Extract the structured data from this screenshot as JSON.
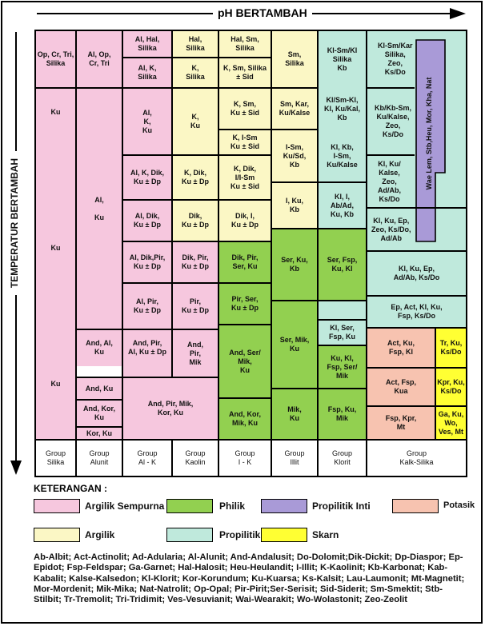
{
  "axes": {
    "ph_title": "pH BERTAMBAH",
    "temp_title": "TEMPERATUR BERTAMBAH"
  },
  "cells": {
    "s1": "Op, Cr, Tri,\nSilika",
    "s2": "Ku",
    "s3": "Ku",
    "s4": "Ku",
    "a1": "Al, Op,\nCr, Tri",
    "a2": "Al,\n\nKu",
    "a3": "And, Al,\nKu",
    "a4": "And, Ku",
    "a5": "And, Kor,\nKu",
    "a6": "Kor, Ku",
    "ak1": "Al, Hal,\nSilika",
    "ak2": "Al, K,\nSilika",
    "ak3": "Al,\nK,\nKu",
    "ak4": "Al, K, Dik,\nKu ± Dp",
    "ak5": "Al, Dik,\nKu ± Dp",
    "ak6": "Al, Dik,Pir,\nKu ± Dp",
    "ak7": "Al, Pir,\nKu ± Dp",
    "ak8": "And, Pir,\nAl, Ku ± Dp",
    "ak9": "And, Pir, Mik,\nKor, Ku",
    "ka1": "Hal,\nSilika",
    "ka2": "K,\nSilika",
    "ka3": "K,\nKu",
    "ka4": "K, Dik,\nKu ± Dp",
    "ka5": "Dik,\nKu ± Dp",
    "ka6": "Dik, Pir,\nKu ± Dp",
    "ka7": "Pir,\nKu ± Dp",
    "ka8": "And,\nPir,\nMik",
    "ik1": "Hal, Sm,\nSilika",
    "ik2": "K, Sm, Silika\n± Sid",
    "ik3": "K, Sm,\nKu ± Sid",
    "ik4": "K, I-Sm\nKu ± Sid",
    "ik5": "K, Dik,\nI/I-Sm\nKu ± Sid",
    "ik6": "Dik, I,\nKu ± Dp",
    "ik7": "Dik, Pir,\nSer, Ku",
    "ik8": "Pir, Ser,\nKu ± Dp",
    "ik9": "And, Ser/\nMik,\nKu",
    "ik10": "And, Kor,\nMik, Ku",
    "il1": "Sm,\nSilika",
    "il2": "Sm, Kar,\nKu/Kalse",
    "il3": "I-Sm,\nKu/Sd,\nKb",
    "il4": "I, Ku,\nKb",
    "il5": "Ser, Ku,\nKb",
    "il6": "Ser, Mik,\nKu",
    "il7": "Mik,\nKu",
    "kl1": "Kl-Sm/Kl\nSilika\nKb",
    "kl2": "Kl/Sm-Kl,\nKl, Ku/Kal,\nKb",
    "kl3": "Kl, Kb,\nI-Sm,\nKu/Kalse",
    "kl4": "Kl, I,\nAb/Ad,\nKu, Kb",
    "kl5": "Ser, Fsp,\nKu, Kl",
    "kl6": "Kl, Ser,\nFsp, Ku",
    "kl7": "Ku, Kl,\nFsp, Ser/\nMik",
    "kl8": "Fsp, Ku,\nMik",
    "ks1": "Kl-Sm/Kar\nSilika,\nZeo,\nKs/Do",
    "ks2": "Kb/Kb-Sm,\nKu/Kalse,\nZeo,\nKs/Do",
    "ks3": "Kl, Ku/\nKalse,\nZeo,\nAd/Ab,\nKs/Do",
    "ks4": "Kl, Ku, Ep,\nZeo, Ks/Do,\nAd/Ab",
    "ks5": "Kl, Ku, Ep,\nAd/Ab, Ks/Do",
    "ks6": "Ep, Act, Kl, Ku,\nFsp, Ks/Do",
    "ks7": "Act, Ku,\nFsp, Kl",
    "ks8": "Act, Fsp,\nKua",
    "ks9": "Fsp, Kpr,\nMt",
    "ks10": "Tr, Ku,\nKs/Do",
    "ks11": "Kpr, Ku,\nKs/Do",
    "ks12": "Ga, Ku, Wo,\nVes, Mt",
    "purple_inner": "Wae  Lem,  Stb,Heu,  Mor,  Kha,  Nat"
  },
  "groups": [
    "Group\nSilika",
    "Group\nAlunit",
    "Group\nAl - K",
    "Group\nKaolin",
    "Group\nI - K",
    "Group\nIllit",
    "Group\nKlorit",
    "Group\nKalk-Silika"
  ],
  "legend": {
    "title": "KETERANGAN :",
    "items": [
      {
        "label": "Argilik Sempurna",
        "color": "#f6c7de"
      },
      {
        "label": "Philik",
        "color": "#92d050"
      },
      {
        "label": "Propilitik Inti",
        "color": "#a99ad7"
      },
      {
        "label": "Potasik",
        "color": "#f7c3b0"
      },
      {
        "label": "Argilik",
        "color": "#fbf7c5"
      },
      {
        "label": "Propilitik",
        "color": "#bfe9dc"
      },
      {
        "label": "Skarn",
        "color": "#ffff33"
      }
    ]
  },
  "abbreviations": "Ab-Albit; Act-Actinolit; Ad-Adularia; Al-Alunit; And-Andalusit; Do-Dolomit;Dik-Dickit; Dp-Diaspor; Ep-Epidot; Fsp-Feldspar; Ga-Garnet; Hal-Halosit; Heu-Heulandit; I-Illit; K-Kaolinit; Kb-Karbonat; Kab-Kabalit; Kalse-Kalsedon; Kl-Klorit; Kor-Korundum; Ku-Kuarsa; Ks-Kalsit; Lau-Laumonit; Mt-Magnetit; Mor-Mordenit; Mik-Mika; Nat-Natrolit; Op-Opal; Pir-Pirit;Ser-Serisit; Sid-Siderit; Sm-Smektit; Stb-Stilbit; Tr-Tremolit; Tri-Tridimit; Ves-Vesuvianit; Wai-Wearakit; Wo-Wolastonit; Zeo-Zeolit"
}
